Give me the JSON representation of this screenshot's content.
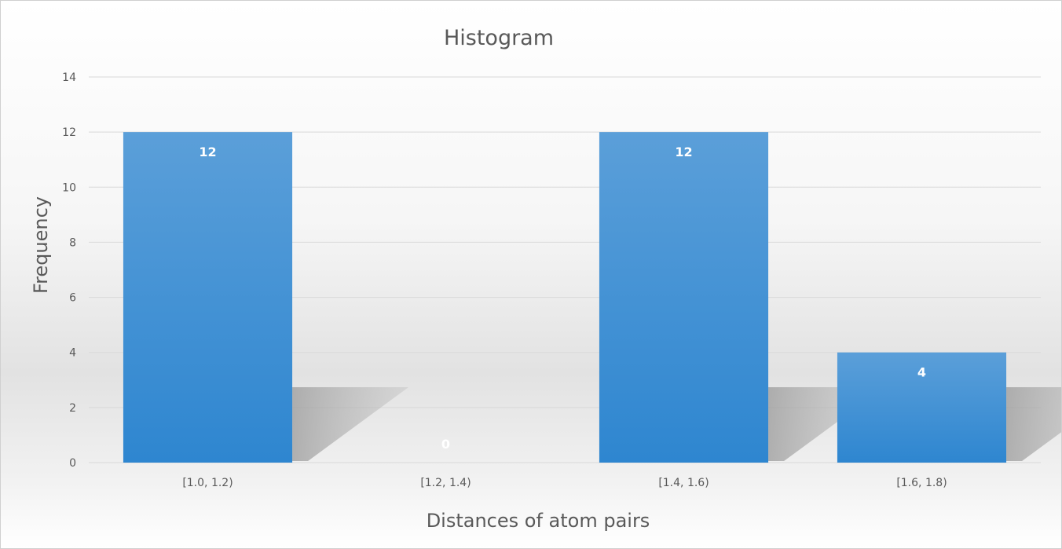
{
  "chart_data": {
    "type": "bar",
    "title": "Histogram",
    "xlabel": "Distances of atom pairs",
    "ylabel": "Frequency",
    "categories": [
      "[1.0, 1.2)",
      "[1.2, 1.4)",
      "[1.4, 1.6)",
      "[1.6, 1.8)"
    ],
    "values": [
      12,
      0,
      12,
      4
    ],
    "data_labels": [
      "12",
      "0",
      "12",
      "4"
    ],
    "ylim": [
      0,
      14
    ],
    "yticks": [
      "0",
      "2",
      "4",
      "6",
      "8",
      "10",
      "12",
      "14"
    ],
    "grid": true,
    "legend": "none",
    "colors": {
      "bar_top": "#5b9fd9",
      "bar_bottom": "#2e86d0",
      "gridline": "#d9d9d9",
      "text": "#595959",
      "data_label": "#ffffff"
    }
  }
}
